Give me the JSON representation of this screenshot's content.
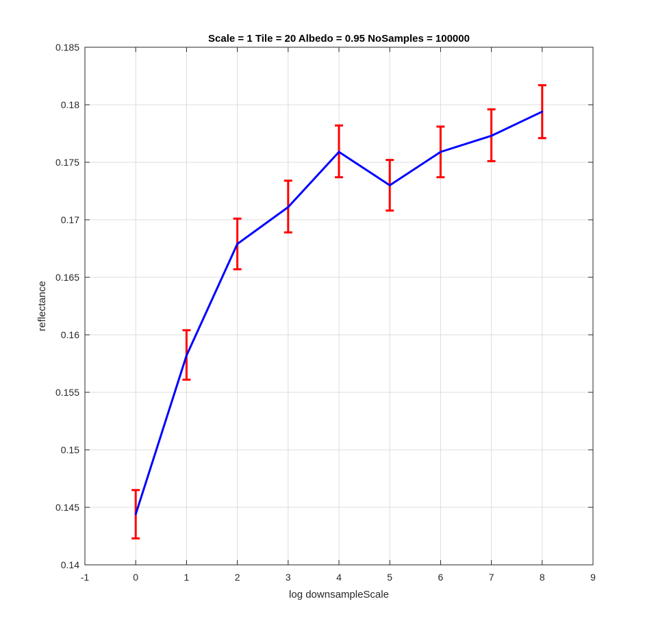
{
  "chart_data": {
    "type": "line",
    "title": "Scale = 1 Tile = 20 Albedo = 0.95 NoSamples = 100000",
    "xlabel": "log downsampleScale",
    "ylabel": "reflectance",
    "xlim": [
      -1,
      9
    ],
    "ylim": [
      0.14,
      0.185
    ],
    "x_ticks": [
      "-1",
      "0",
      "1",
      "2",
      "3",
      "4",
      "5",
      "6",
      "7",
      "8",
      "9"
    ],
    "y_ticks": [
      "0.14",
      "0.145",
      "0.15",
      "0.155",
      "0.16",
      "0.165",
      "0.17",
      "0.175",
      "0.18",
      "0.185"
    ],
    "grid": true,
    "series": [
      {
        "x": [
          0,
          1,
          2,
          3,
          4,
          5,
          6,
          7,
          8
        ],
        "values": [
          0.1444,
          0.1582,
          0.1679,
          0.1711,
          0.1759,
          0.173,
          0.1759,
          0.1773,
          0.1794
        ],
        "error_lower": [
          0.1423,
          0.1561,
          0.1657,
          0.1689,
          0.1737,
          0.1708,
          0.1737,
          0.1751,
          0.1771
        ],
        "error_upper": [
          0.1465,
          0.1604,
          0.1701,
          0.1734,
          0.1782,
          0.1752,
          0.1781,
          0.1796,
          0.1817
        ],
        "color": "#0000ff",
        "error_color": "#ff0000"
      }
    ]
  }
}
